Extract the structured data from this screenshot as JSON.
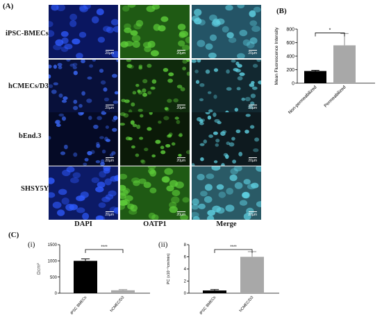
{
  "panels": {
    "A": {
      "letter": "(A)"
    },
    "B": {
      "letter": "(B)"
    },
    "C": {
      "letter": "(C)",
      "sub_i": "(i)",
      "sub_ii": "(ii)"
    }
  },
  "figure_a": {
    "rows": [
      "iPSC-BMECs",
      "hCMECs/D3",
      "bEnd.3",
      "SHSY5Y"
    ],
    "columns": [
      "DAPI",
      "OATP1",
      "Merge"
    ],
    "scale_label": "20µm",
    "colors": {
      "dapi": "#1d3fd6",
      "oatp": "#3fa52a",
      "merge": "#3c9fb0"
    }
  },
  "chart_data": [
    {
      "id": "B",
      "type": "bar",
      "categories": [
        "Non-permeabilized",
        "Permeabilized"
      ],
      "values": [
        180,
        560
      ],
      "errors": [
        10,
        175
      ],
      "ylabel": "Mean Fluorescence Intensity",
      "ylim": [
        0,
        800
      ],
      "yticks": [
        0,
        200,
        400,
        600,
        800
      ],
      "significance": "*",
      "colors": [
        "#000000",
        "#a8a8a8"
      ]
    },
    {
      "id": "C-i",
      "type": "bar",
      "categories": [
        "iPSC BMECs",
        "hCMEC/D3"
      ],
      "values": [
        1000,
        90
      ],
      "errors": [
        60,
        20
      ],
      "ylabel": "Ωcm²",
      "ylim": [
        0,
        1500
      ],
      "yticks": [
        0,
        500,
        1000,
        1500
      ],
      "significance": "****",
      "colors": [
        "#000000",
        "#a8a8a8"
      ]
    },
    {
      "id": "C-ii",
      "type": "bar",
      "categories": [
        "iPSC BMECs",
        "hCMEC/D3"
      ],
      "values": [
        0.45,
        6.0
      ],
      "errors": [
        0.15,
        0.85
      ],
      "ylabel": "PC (x10⁻⁶cm/min)",
      "ylim": [
        0,
        8
      ],
      "yticks": [
        0,
        2,
        4,
        6,
        8
      ],
      "significance": "****",
      "colors": [
        "#000000",
        "#a8a8a8"
      ]
    }
  ]
}
